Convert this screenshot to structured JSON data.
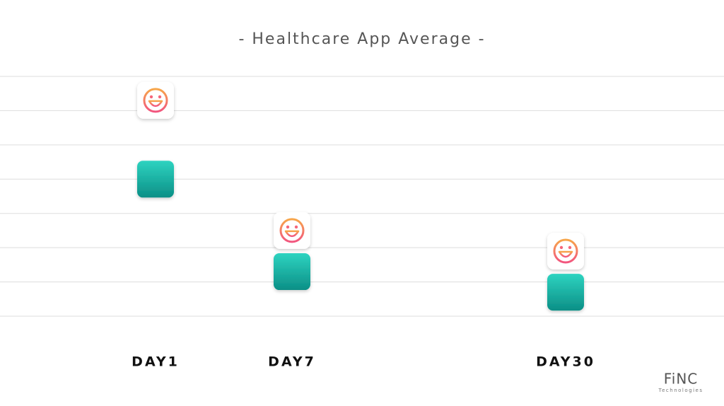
{
  "chart_data": {
    "type": "icon-dot",
    "title": "- Healthcare App Average -",
    "categories": [
      "DAY1",
      "DAY7",
      "DAY30"
    ],
    "series": [
      {
        "color": "#f5667a",
        "icon": "smiley",
        "values": [
          6.3,
          2.5,
          1.9
        ]
      },
      {
        "color": "#17b3a5",
        "icon": "square",
        "values": [
          4.0,
          1.3,
          0.7
        ]
      }
    ],
    "ylim": [
      0,
      7
    ],
    "gridlines": [
      0,
      1,
      2,
      3,
      4,
      5,
      6,
      7
    ],
    "grid": true
  },
  "logo": {
    "name": "FiNC",
    "subtitle": "Technologies"
  }
}
